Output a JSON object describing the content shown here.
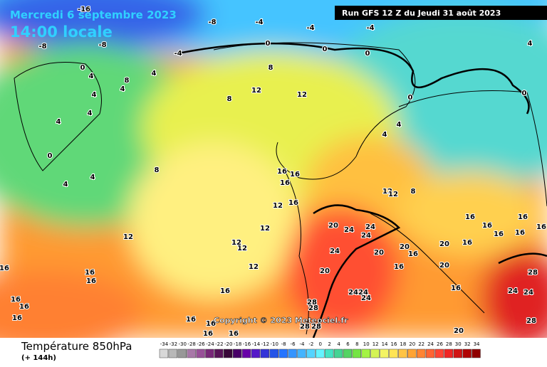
{
  "header": {
    "title": "Mercredi 6 septembre 2023",
    "subtitle": "14:00 locale",
    "run": "Run GFS 12 Z du Jeudi 31 août 2023"
  },
  "copyright": "Copyright © 2023 Meteociel.fr",
  "footer": {
    "title": "Température 850hPa",
    "subtitle": "(+ 144h)"
  },
  "legend": {
    "values": [
      -34,
      -32,
      -30,
      -28,
      -26,
      -24,
      -22,
      -20,
      -18,
      -16,
      -14,
      -12,
      -10,
      -8,
      -6,
      -4,
      -2,
      0,
      2,
      4,
      6,
      8,
      10,
      12,
      14,
      16,
      18,
      20,
      22,
      24,
      26,
      28,
      30,
      32,
      34
    ],
    "colors": [
      "#d8d8d8",
      "#b8b8b8",
      "#989898",
      "#a878a8",
      "#985098",
      "#782878",
      "#581458",
      "#380838",
      "#480068",
      "#6800a8",
      "#5418c8",
      "#3434d8",
      "#2454e8",
      "#2474ff",
      "#3494ff",
      "#44b4ff",
      "#54d4ff",
      "#64f4ff",
      "#44e4c4",
      "#44d494",
      "#54d464",
      "#74e444",
      "#a4f444",
      "#d4f454",
      "#f4f464",
      "#ffe454",
      "#ffc444",
      "#ffa434",
      "#ff8434",
      "#ff6434",
      "#ff4434",
      "#f02424",
      "#d01414",
      "#b00404",
      "#900000"
    ]
  },
  "contour_labels": [
    -16,
    -8,
    -4,
    -4,
    -4,
    -8,
    -8,
    -4,
    0,
    0,
    0,
    4,
    0,
    8,
    8,
    4,
    4,
    4,
    4,
    4,
    4,
    12,
    12,
    8,
    0,
    0,
    4,
    4,
    0,
    4,
    4,
    8,
    16,
    16,
    16,
    12,
    12,
    8,
    12,
    16,
    20,
    24,
    24,
    24,
    12,
    12,
    12,
    12,
    24,
    20,
    20,
    16,
    20,
    16,
    16,
    20,
    16,
    20,
    16,
    16,
    16,
    12,
    24,
    24,
    24,
    16,
    24,
    28,
    16,
    16,
    16,
    28,
    28,
    28,
    16,
    16,
    16,
    16,
    16,
    28,
    28,
    20,
    24,
    16,
    16,
    16,
    16,
    16
  ]
}
